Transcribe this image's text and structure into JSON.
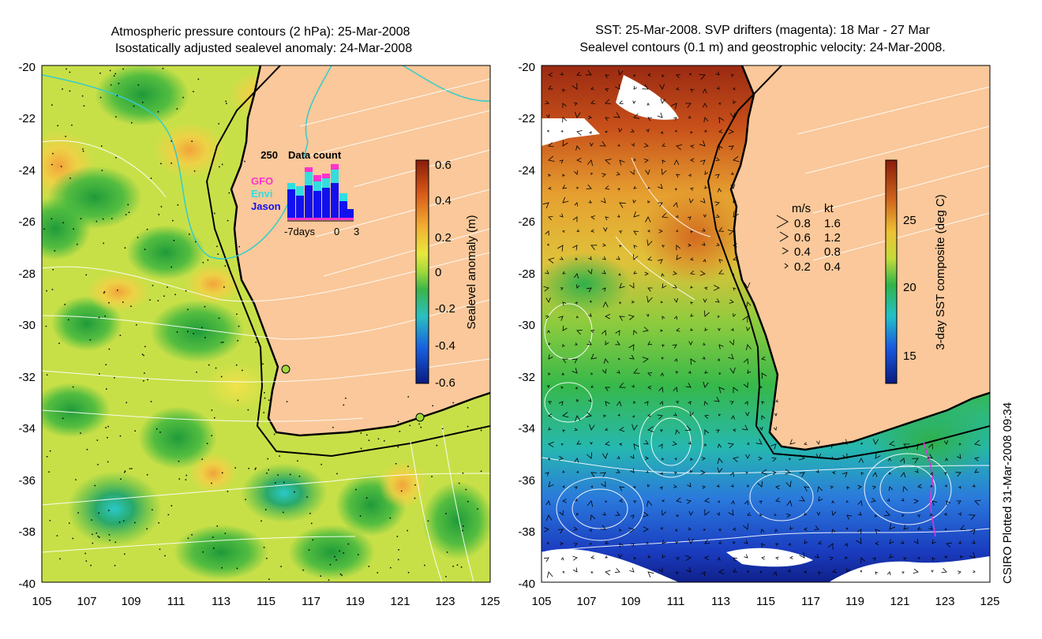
{
  "left_panel": {
    "title_line1": "Atmospheric pressure contours (2 hPa): 25-Mar-2008",
    "title_line2": "Isostatically adjusted sealevel anomaly: 24-Mar-2008",
    "colorbar": {
      "label": "Sealevel anomaly (m)",
      "ticks": [
        "0.6",
        "0.4",
        "0.2",
        "0",
        "-0.2",
        "-0.4",
        "-0.6"
      ]
    },
    "data_count": {
      "title": "Data count",
      "max_label": "250",
      "legend": [
        "GFO",
        "Envi",
        "Jason"
      ],
      "legend_colors": [
        "#ff33cc",
        "#33dddd",
        "#1111ee"
      ],
      "x_labels": [
        "-7days",
        "0",
        "3"
      ]
    }
  },
  "right_panel": {
    "title_line1": "SST: 25-Mar-2008. SVP drifters (magenta): 18 Mar - 27 Mar",
    "title_line2": "Sealevel contours (0.1 m) and geostrophic velocity: 24-Mar-2008.",
    "colorbar": {
      "label": "3-day SST composite (deg C)",
      "ticks": [
        "25",
        "20",
        "15"
      ]
    },
    "velocity_legend": {
      "header_ms": "m/s",
      "header_kt": "kt",
      "rows": [
        {
          "ms": "0.8",
          "kt": "1.6"
        },
        {
          "ms": "0.6",
          "kt": "1.2"
        },
        {
          "ms": "0.4",
          "kt": "0.8"
        },
        {
          "ms": "0.2",
          "kt": "0.4"
        }
      ]
    }
  },
  "axes": {
    "y_labels": [
      "-20",
      "-22",
      "-24",
      "-26",
      "-28",
      "-30",
      "-32",
      "-34",
      "-36",
      "-38",
      "-40"
    ],
    "x_labels": [
      "105",
      "107",
      "109",
      "111",
      "113",
      "115",
      "117",
      "119",
      "121",
      "123",
      "125"
    ]
  },
  "credit": "CSIRO Plotted 31-Mar-2008 09:34",
  "colors": {
    "land": "#fac89a",
    "coast": "#000000",
    "contour": "#ffffff",
    "cyan_line": "#33cccc"
  }
}
